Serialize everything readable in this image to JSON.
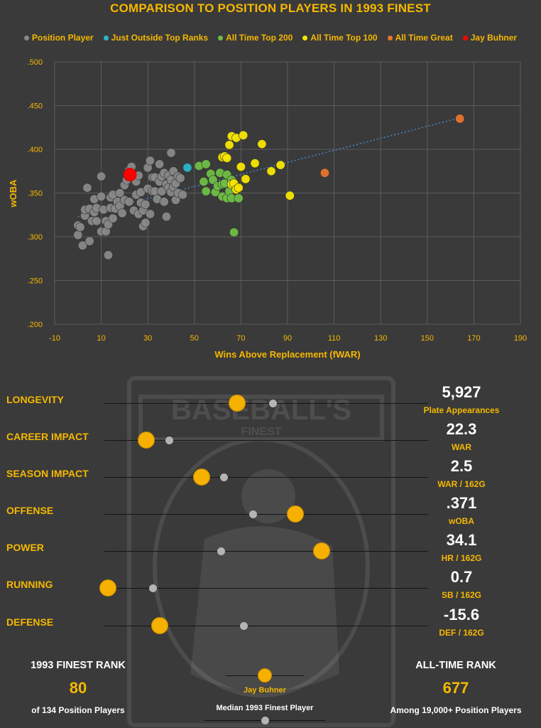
{
  "title": "COMPARISON TO POSITION PLAYERS IN 1993 FINEST",
  "legend": [
    {
      "label": "Position Player",
      "color": "#888888"
    },
    {
      "label": "Just Outside Top Ranks",
      "color": "#2ab6c8"
    },
    {
      "label": "All Time Top 200",
      "color": "#6fbe44"
    },
    {
      "label": "All Time Top 100",
      "color": "#f5e600"
    },
    {
      "label": "All Time Great",
      "color": "#e8742c"
    },
    {
      "label": "Jay Buhner",
      "color": "#ff0000"
    }
  ],
  "chart_data": {
    "type": "scatter",
    "xlabel": "Wins Above Replacement (fWAR)",
    "ylabel": "wOBA",
    "xlim": [
      -10,
      190
    ],
    "ylim": [
      0.2,
      0.5
    ],
    "xticks": [
      "-10",
      "10",
      "30",
      "50",
      "70",
      "90",
      "110",
      "130",
      "150",
      "170",
      "190"
    ],
    "yticks": [
      ".200",
      ".250",
      ".300",
      ".350",
      ".400",
      ".450",
      ".500"
    ],
    "grid": true,
    "trendline": {
      "x": [
        0,
        164
      ],
      "y": [
        0.323,
        0.436
      ]
    },
    "series": [
      {
        "name": "Position Player",
        "color": "#888888",
        "points": [
          [
            0,
            0.313
          ],
          [
            0,
            0.302
          ],
          [
            1,
            0.311
          ],
          [
            2,
            0.29
          ],
          [
            3,
            0.324
          ],
          [
            3,
            0.331
          ],
          [
            4,
            0.356
          ],
          [
            5,
            0.295
          ],
          [
            5,
            0.332
          ],
          [
            6,
            0.318
          ],
          [
            7,
            0.343
          ],
          [
            7,
            0.328
          ],
          [
            8,
            0.333
          ],
          [
            8,
            0.318
          ],
          [
            10,
            0.306
          ],
          [
            10,
            0.346
          ],
          [
            10,
            0.369
          ],
          [
            11,
            0.331
          ],
          [
            12,
            0.318
          ],
          [
            12,
            0.306
          ],
          [
            13,
            0.279
          ],
          [
            13,
            0.314
          ],
          [
            14,
            0.345
          ],
          [
            14,
            0.333
          ],
          [
            15,
            0.321
          ],
          [
            15,
            0.348
          ],
          [
            16,
            0.332
          ],
          [
            17,
            0.34
          ],
          [
            18,
            0.35
          ],
          [
            18,
            0.335
          ],
          [
            19,
            0.327
          ],
          [
            20,
            0.359
          ],
          [
            20,
            0.342
          ],
          [
            21,
            0.365
          ],
          [
            22,
            0.376
          ],
          [
            22,
            0.34
          ],
          [
            23,
            0.38
          ],
          [
            24,
            0.33
          ],
          [
            25,
            0.348
          ],
          [
            25,
            0.363
          ],
          [
            26,
            0.37
          ],
          [
            26,
            0.326
          ],
          [
            27,
            0.339
          ],
          [
            27,
            0.351
          ],
          [
            28,
            0.312
          ],
          [
            28,
            0.33
          ],
          [
            29,
            0.316
          ],
          [
            29,
            0.337
          ],
          [
            30,
            0.379
          ],
          [
            30,
            0.355
          ],
          [
            31,
            0.387
          ],
          [
            31,
            0.326
          ],
          [
            32,
            0.368
          ],
          [
            32,
            0.352
          ],
          [
            33,
            0.352
          ],
          [
            33,
            0.368
          ],
          [
            34,
            0.343
          ],
          [
            35,
            0.383
          ],
          [
            35,
            0.363
          ],
          [
            36,
            0.369
          ],
          [
            36,
            0.352
          ],
          [
            37,
            0.373
          ],
          [
            37,
            0.34
          ],
          [
            38,
            0.323
          ],
          [
            38,
            0.36
          ],
          [
            39,
            0.356
          ],
          [
            39,
            0.37
          ],
          [
            40,
            0.396
          ],
          [
            40,
            0.351
          ],
          [
            40,
            0.365
          ],
          [
            41,
            0.357
          ],
          [
            41,
            0.375
          ],
          [
            42,
            0.342
          ],
          [
            42,
            0.361
          ],
          [
            43,
            0.369
          ],
          [
            43,
            0.35
          ],
          [
            44,
            0.367
          ],
          [
            45,
            0.348
          ]
        ]
      },
      {
        "name": "Just Outside Top Ranks",
        "color": "#2ab6c8",
        "points": [
          [
            47,
            0.379
          ]
        ]
      },
      {
        "name": "All Time Top 200",
        "color": "#6fbe44",
        "points": [
          [
            52,
            0.381
          ],
          [
            54,
            0.363
          ],
          [
            55,
            0.352
          ],
          [
            55,
            0.383
          ],
          [
            57,
            0.372
          ],
          [
            58,
            0.365
          ],
          [
            59,
            0.351
          ],
          [
            60,
            0.358
          ],
          [
            61,
            0.373
          ],
          [
            62,
            0.346
          ],
          [
            62,
            0.36
          ],
          [
            63,
            0.361
          ],
          [
            64,
            0.344
          ],
          [
            64,
            0.371
          ],
          [
            65,
            0.352
          ],
          [
            66,
            0.365
          ],
          [
            66,
            0.344
          ],
          [
            67,
            0.305
          ],
          [
            68,
            0.355
          ],
          [
            69,
            0.344
          ]
        ]
      },
      {
        "name": "All Time Top 100",
        "color": "#f5e600",
        "points": [
          [
            62,
            0.391
          ],
          [
            63,
            0.392
          ],
          [
            64,
            0.39
          ],
          [
            65,
            0.405
          ],
          [
            66,
            0.415
          ],
          [
            66,
            0.36
          ],
          [
            67,
            0.361
          ],
          [
            68,
            0.413
          ],
          [
            68,
            0.354
          ],
          [
            69,
            0.356
          ],
          [
            70,
            0.38
          ],
          [
            71,
            0.416
          ],
          [
            72,
            0.366
          ],
          [
            76,
            0.384
          ],
          [
            79,
            0.406
          ],
          [
            83,
            0.375
          ],
          [
            87,
            0.382
          ],
          [
            91,
            0.347
          ]
        ]
      },
      {
        "name": "All Time Great",
        "color": "#e8742c",
        "points": [
          [
            106,
            0.373
          ],
          [
            164,
            0.435
          ]
        ]
      },
      {
        "name": "Jay Buhner",
        "color": "#ff0000",
        "points": [
          [
            22.3,
            0.371
          ]
        ]
      }
    ]
  },
  "metrics": [
    {
      "label": "LONGEVITY",
      "player": 0.41,
      "median": 0.52,
      "value": "5,927",
      "unit": "Plate Appearances"
    },
    {
      "label": "CAREER IMPACT",
      "player": 0.13,
      "median": 0.2,
      "value": "22.3",
      "unit": "WAR"
    },
    {
      "label": "SEASON IMPACT",
      "player": 0.3,
      "median": 0.37,
      "value": "2.5",
      "unit": "WAR / 162G"
    },
    {
      "label": "OFFENSE",
      "player": 0.59,
      "median": 0.46,
      "value": ".371",
      "unit": "wOBA"
    },
    {
      "label": "POWER",
      "player": 0.67,
      "median": 0.36,
      "value": "34.1",
      "unit": "HR / 162G"
    },
    {
      "label": "RUNNING",
      "player": 0.01,
      "median": 0.15,
      "value": "0.7",
      "unit": "SB / 162G"
    },
    {
      "label": "DEFENSE",
      "player": 0.17,
      "median": 0.43,
      "value": "-15.6",
      "unit": "DEF / 162G"
    }
  ],
  "ranks": {
    "finest_label": "1993 FINEST RANK",
    "finest_value": "80",
    "finest_sub": "of 134 Position Players",
    "alltime_label": "ALL-TIME RANK",
    "alltime_value": "677",
    "alltime_sub": "Among 19,000+ Position Players"
  },
  "key": {
    "player_label": "Jay Buhner",
    "median_label": "Median 1993 Finest Player"
  },
  "colors": {
    "accent": "#f5b800",
    "background": "#3a3a3a",
    "gold_dot": "#f5b000",
    "gray_dot": "#b4b4b4"
  }
}
